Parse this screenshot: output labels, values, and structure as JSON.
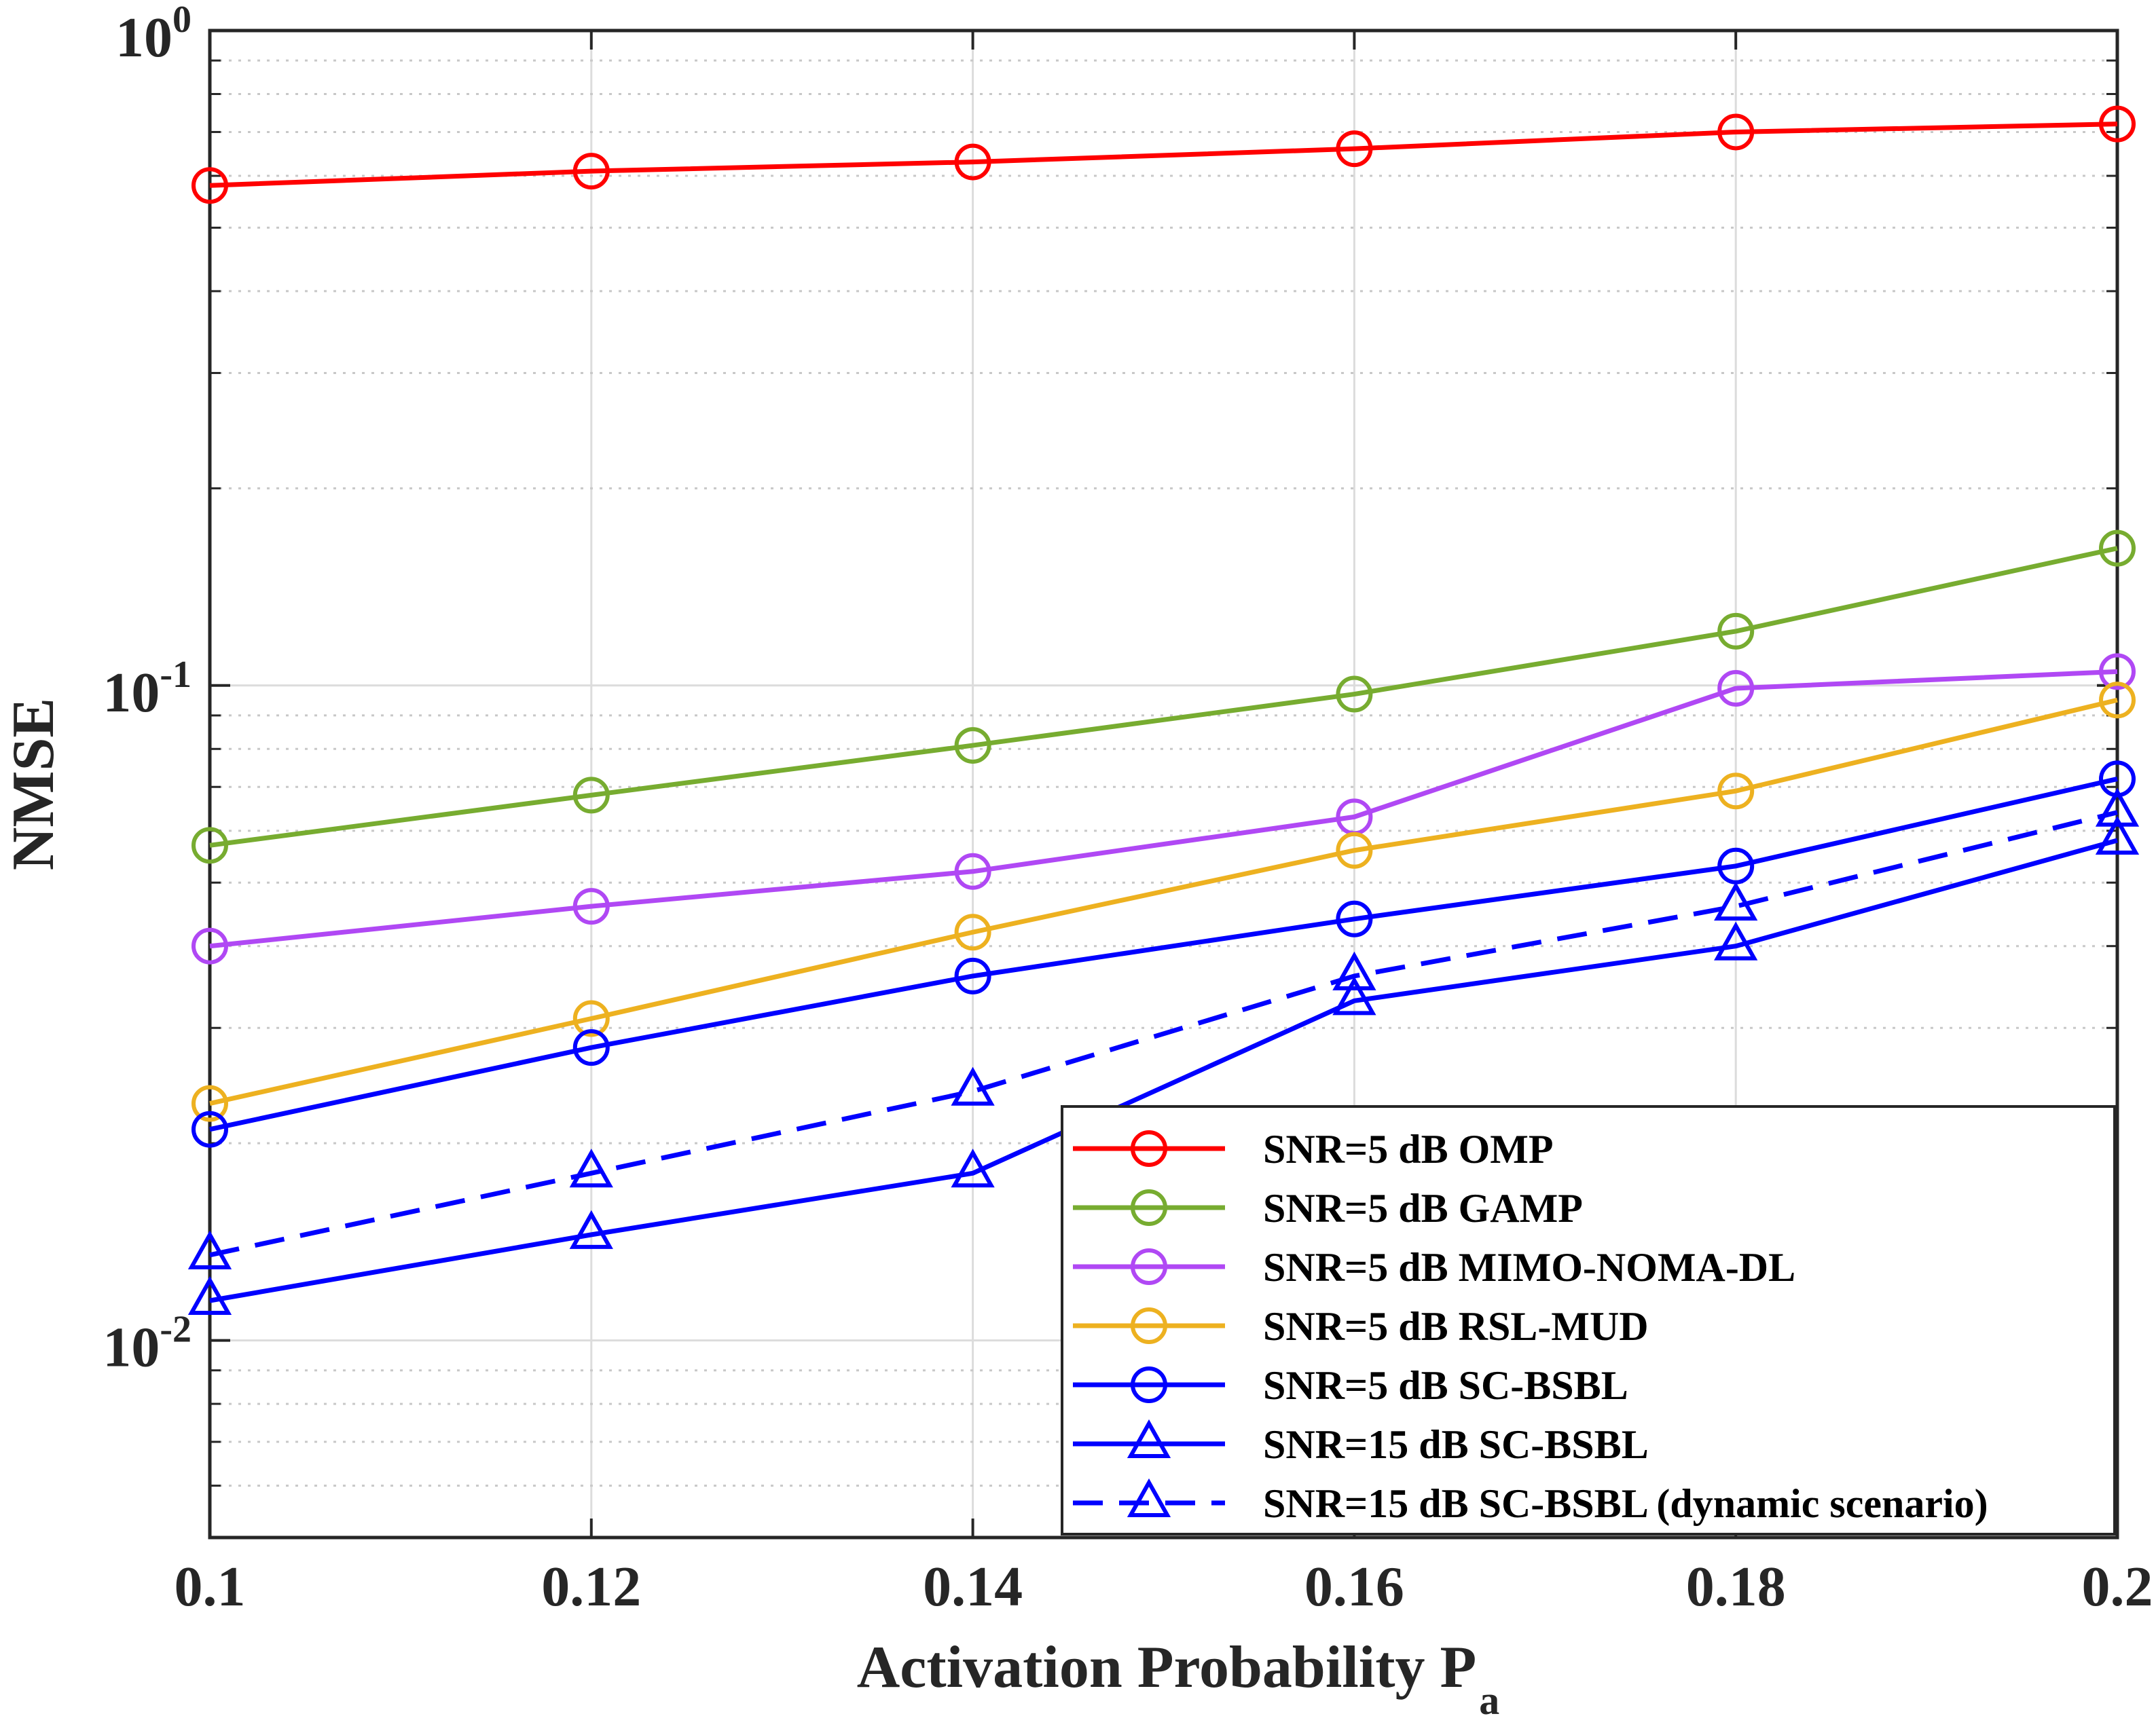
{
  "chart_data": {
    "type": "line",
    "yscale": "log",
    "title": "",
    "xlabel": "Activation Probability",
    "xlabel_subscript_base": "P",
    "xlabel_subscript": "a",
    "ylabel": "NMSE",
    "xlim": [
      0.1,
      0.2
    ],
    "ylim": [
      0.005,
      1
    ],
    "x": [
      0.1,
      0.12,
      0.14,
      0.16,
      0.18,
      0.2
    ],
    "x_tick_labels": [
      "0.1",
      "0.12",
      "0.14",
      "0.16",
      "0.18",
      "0.2"
    ],
    "y_tick_labels": [
      {
        "base": "10",
        "exp": "-2",
        "value": 0.01
      },
      {
        "base": "10",
        "exp": "-1",
        "value": 0.1
      },
      {
        "base": "10",
        "exp": "0",
        "value": 1
      }
    ],
    "grid": true,
    "legend_position": "bottom-right",
    "series": [
      {
        "name": "SNR=5 dB OMP",
        "color": "#ff0000",
        "marker": "circle",
        "dash": "solid",
        "values": [
          0.58,
          0.61,
          0.63,
          0.66,
          0.7,
          0.72
        ]
      },
      {
        "name": "SNR=5 dB GAMP",
        "color": "#77ac30",
        "marker": "circle",
        "dash": "solid",
        "values": [
          0.057,
          0.068,
          0.081,
          0.097,
          0.121,
          0.162
        ]
      },
      {
        "name": "SNR=5 dB MIMO-NOMA-DL",
        "color": "#b048f4",
        "marker": "circle",
        "dash": "solid",
        "values": [
          0.04,
          0.046,
          0.052,
          0.063,
          0.099,
          0.105
        ]
      },
      {
        "name": "SNR=5 dB RSL-MUD",
        "color": "#edb120",
        "marker": "circle",
        "dash": "solid",
        "values": [
          0.023,
          0.031,
          0.042,
          0.056,
          0.069,
          0.095
        ]
      },
      {
        "name": "SNR=5 dB SC-BSBL",
        "color": "#0000ff",
        "marker": "circle",
        "dash": "solid",
        "values": [
          0.021,
          0.028,
          0.036,
          0.044,
          0.053,
          0.072
        ]
      },
      {
        "name": "SNR=15 dB SC-BSBL",
        "color": "#0000ff",
        "marker": "triangle",
        "dash": "solid",
        "values": [
          0.0115,
          0.0145,
          0.018,
          0.033,
          0.04,
          0.058
        ]
      },
      {
        "name": "SNR=15 dB SC-BSBL (dynamic scenario)",
        "color": "#0000ff",
        "marker": "triangle",
        "dash": "dashed",
        "values": [
          0.0135,
          0.018,
          0.024,
          0.036,
          0.046,
          0.064
        ]
      }
    ]
  }
}
